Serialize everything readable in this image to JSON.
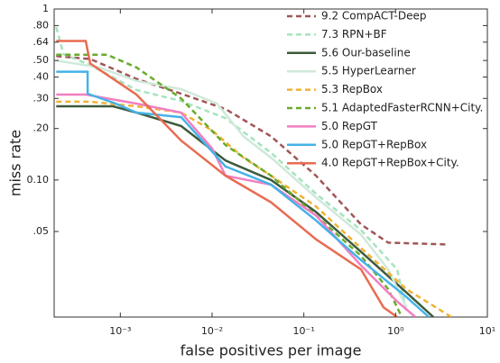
{
  "chart_data": {
    "type": "line",
    "x_label": "false positives per image",
    "y_label": "miss rate",
    "xscale": "log",
    "yscale": "log",
    "xlim": [
      0.00019,
      10
    ],
    "ylim": [
      0.0158,
      1
    ],
    "xticks": [
      {
        "value": 0.001,
        "label": "10⁻³"
      },
      {
        "value": 0.01,
        "label": "10⁻²"
      },
      {
        "value": 0.1,
        "label": "10⁻¹"
      },
      {
        "value": 1,
        "label": "10⁰"
      },
      {
        "value": 10,
        "label": "10¹"
      }
    ],
    "yticks": [
      1,
      {
        "value": 0.8,
        "label": ".80"
      },
      {
        "value": 0.64,
        "label": ".64"
      },
      {
        "value": 0.5,
        "label": ".50"
      },
      {
        "value": 0.4,
        "label": ".40"
      },
      {
        "value": 0.3,
        "label": ".30"
      },
      {
        "value": 0.2,
        "label": ".20"
      },
      {
        "value": 0.1,
        "label": "0.10"
      },
      {
        "value": 0.05,
        "label": ".05"
      }
    ],
    "legend": "upper right",
    "series": [
      {
        "name": "9.2 CompACT-Deep",
        "color": "#a05656",
        "style": "dashed",
        "x": [
          0.0002,
          0.00047,
          0.0015,
          0.0046,
          0.014,
          0.044,
          0.136,
          0.42,
          0.83,
          3.6
        ],
        "values": [
          0.53,
          0.51,
          0.39,
          0.32,
          0.26,
          0.18,
          0.106,
          0.055,
          0.043,
          0.042
        ]
      },
      {
        "name": "7.3 RPN+BF",
        "color": "#a6e3bd",
        "style": "dashed",
        "x": [
          0.0002,
          0.00024,
          0.00047,
          0.0015,
          0.0046,
          0.014,
          0.044,
          0.136,
          0.42,
          1.04,
          1.31
        ],
        "values": [
          0.785,
          0.545,
          0.47,
          0.336,
          0.29,
          0.23,
          0.144,
          0.083,
          0.051,
          0.03,
          0.017
        ]
      },
      {
        "name": "5.6 Our-baseline",
        "color": "#3d5a3d",
        "style": "solid",
        "x": [
          0.0002,
          0.00083,
          0.0015,
          0.0046,
          0.014,
          0.044,
          0.136,
          0.42,
          1.31,
          2.58
        ],
        "values": [
          0.27,
          0.27,
          0.248,
          0.207,
          0.13,
          0.1,
          0.065,
          0.038,
          0.022,
          0.0158
        ]
      },
      {
        "name": "5.5 HyperLearner",
        "color": "#cfe9da",
        "style": "solid",
        "x": [
          0.0002,
          0.00059,
          0.0015,
          0.0046,
          0.0113,
          0.022,
          0.044,
          0.136,
          0.42,
          0.83,
          1.31
        ],
        "values": [
          0.5,
          0.455,
          0.38,
          0.34,
          0.28,
          0.18,
          0.135,
          0.079,
          0.048,
          0.03,
          0.018
        ]
      },
      {
        "name": "5.3 RepBox",
        "color": "#f2b233",
        "style": "dashed",
        "x": [
          0.0002,
          0.00047,
          0.0015,
          0.0046,
          0.01,
          0.022,
          0.044,
          0.136,
          0.42,
          1.31,
          4.06
        ],
        "values": [
          0.287,
          0.287,
          0.27,
          0.248,
          0.195,
          0.135,
          0.106,
          0.07,
          0.04,
          0.023,
          0.0158
        ]
      },
      {
        "name": "5.1 AdaptedFasterRCNN+City.",
        "color": "#6aab2c",
        "style": "dashed",
        "x": [
          0.0002,
          0.00072,
          0.0015,
          0.0046,
          0.014,
          0.044,
          0.136,
          0.42,
          0.83,
          1.17
        ],
        "values": [
          0.54,
          0.54,
          0.455,
          0.3,
          0.16,
          0.106,
          0.062,
          0.036,
          0.023,
          0.0158
        ]
      },
      {
        "name": "5.0 RepGT",
        "color": "#f27fc2",
        "style": "solid",
        "x": [
          0.0002,
          0.00042,
          0.0015,
          0.0046,
          0.01,
          0.014,
          0.044,
          0.136,
          0.42,
          1.04,
          1.64
        ],
        "values": [
          0.316,
          0.316,
          0.28,
          0.248,
          0.153,
          0.106,
          0.094,
          0.062,
          0.0316,
          0.0195,
          0.0158
        ]
      },
      {
        "name": "5.0 RepGT+RepBox",
        "color": "#45b2e8",
        "style": "solid",
        "x": [
          0.0002,
          0.00044,
          0.00044,
          0.00089,
          0.0015,
          0.0046,
          0.014,
          0.044,
          0.136,
          0.42,
          1.31,
          2.31
        ],
        "values": [
          0.43,
          0.43,
          0.32,
          0.28,
          0.248,
          0.233,
          0.12,
          0.094,
          0.058,
          0.034,
          0.0207,
          0.0158
        ]
      },
      {
        "name": "4.0 RepGT+RepBox+City.",
        "color": "#e86c52",
        "style": "solid",
        "x": [
          0.0002,
          0.00042,
          0.00047,
          0.0015,
          0.0046,
          0.014,
          0.044,
          0.136,
          0.42,
          0.74,
          1.04
        ],
        "values": [
          0.65,
          0.65,
          0.48,
          0.316,
          0.17,
          0.106,
          0.074,
          0.045,
          0.03,
          0.018,
          0.0158
        ]
      }
    ]
  }
}
